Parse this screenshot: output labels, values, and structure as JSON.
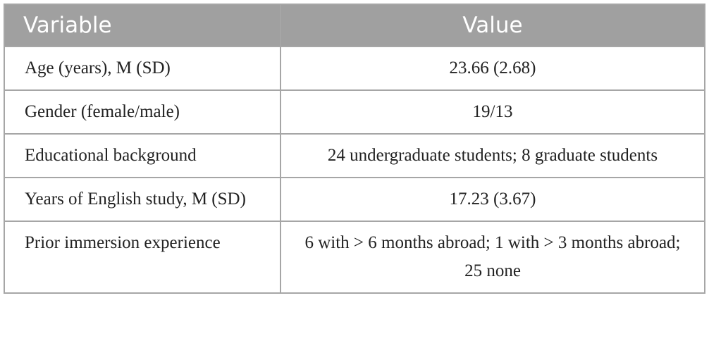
{
  "table": {
    "header": [
      "Variable",
      "Value"
    ],
    "rows": [
      [
        "Age (years), M (SD)",
        "23.66 (2.68)"
      ],
      [
        "Gender (female/male)",
        "19/13"
      ],
      [
        "Educational background",
        "24 undergraduate students; 8 graduate students"
      ],
      [
        "Years of English study, M (SD)",
        "17.23 (3.67)"
      ],
      [
        "Prior immersion experience",
        "6 with > 6 months abroad; 1 with > 3 months abroad; 25 none"
      ]
    ]
  }
}
